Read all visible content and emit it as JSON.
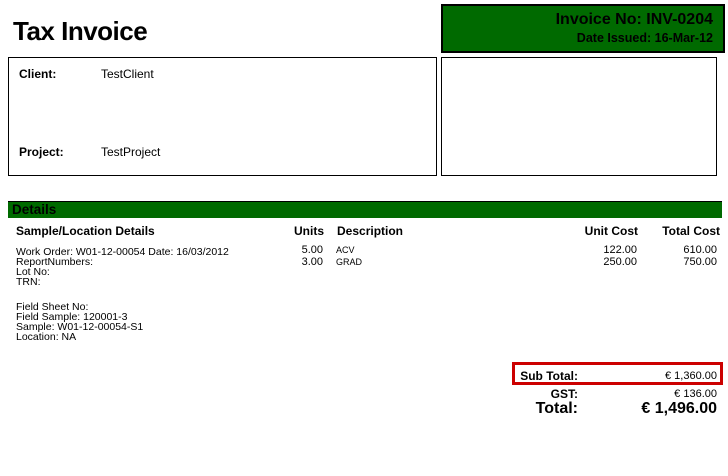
{
  "title": "Tax Invoice",
  "colors": {
    "brand-green": "#006a00",
    "highlight-red": "#cc0000"
  },
  "invoice_header": {
    "invoice_no_label": "Invoice No:",
    "invoice_no_value": "INV-0204",
    "date_issued_label": "Date Issued:",
    "date_issued_value": "16-Mar-12"
  },
  "client_box": {
    "client_label": "Client:",
    "client_value": "TestClient",
    "project_label": "Project:",
    "project_value": "TestProject"
  },
  "details": {
    "section_title": "Details",
    "columns": {
      "sample_location": "Sample/Location Details",
      "units": "Units",
      "description": "Description",
      "unit_cost": "Unit Cost",
      "total_cost": "Total Cost"
    },
    "sample_info_block1": [
      "Work Order: W01-12-00054 Date: 16/03/2012",
      "ReportNumbers:",
      "Lot No:",
      "TRN:"
    ],
    "sample_info_block2": [
      "Field Sheet No:",
      "Field Sample: 120001-3",
      "Sample: W01-12-00054-S1",
      "Location: NA"
    ],
    "line_items": [
      {
        "units": "5.00",
        "description": "ACV",
        "unit_cost": "122.00",
        "total_cost": "610.00"
      },
      {
        "units": "3.00",
        "description": "GRAD",
        "unit_cost": "250.00",
        "total_cost": "750.00"
      }
    ]
  },
  "totals": {
    "sub_total_label": "Sub Total:",
    "sub_total_value": "€ 1,360.00",
    "gst_label": "GST:",
    "gst_value": "€ 136.00",
    "total_label": "Total:",
    "total_value": "€ 1,496.00"
  }
}
